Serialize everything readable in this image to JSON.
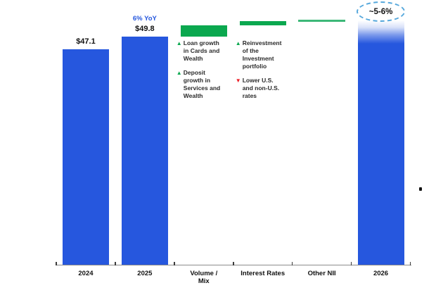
{
  "page": {
    "background_color": "#ffffff",
    "accent_blue": "#2657DE",
    "accent_green": "#0BA84F",
    "accent_red": "#EC1C24",
    "callout_border_color": "#56A8DC"
  },
  "chart_data": {
    "type": "waterfall",
    "title": "",
    "xlabel": "",
    "ylabel": "",
    "ylim": [
      0,
      57.8
    ],
    "grid": false,
    "legend": "none",
    "categories": [
      "2024",
      "2025",
      "Volume / Mix",
      "Interest Rates",
      "Other NII",
      "2026"
    ],
    "columns": [
      {
        "category": "2024",
        "tick_lines": [
          "2024"
        ],
        "role": "total",
        "value": 47.1,
        "value_label": "$47.1",
        "color": "#2657DE"
      },
      {
        "category": "2025",
        "tick_lines": [
          "2025"
        ],
        "role": "total",
        "value": 49.8,
        "value_label": "$49.8",
        "growth_label": "6% YoY",
        "growth_label_color": "#2456DD",
        "color": "#2657DE"
      },
      {
        "category": "Volume / Mix",
        "tick_lines": [
          "Volume /",
          "Mix"
        ],
        "role": "increase",
        "start": 49.8,
        "end": 52.2,
        "approx_change": 2.4,
        "color": "#0BA84F",
        "annotations": [
          {
            "icon": "up-triangle-icon",
            "glyph": "▲",
            "icon_color": "#0BA84F",
            "lines": [
              "Loan growth",
              "in Cards and",
              "Wealth"
            ]
          },
          {
            "icon": "up-triangle-icon",
            "glyph": "▲",
            "icon_color": "#0BA84F",
            "lines": [
              "Deposit",
              "growth in",
              "Services and",
              "Wealth"
            ]
          }
        ]
      },
      {
        "category": "Interest Rates",
        "tick_lines": [
          "Interest Rates"
        ],
        "role": "increase",
        "start": 52.2,
        "end": 53.2,
        "approx_change": 1.0,
        "color": "#0BA84F",
        "annotations": [
          {
            "icon": "up-triangle-icon",
            "glyph": "▲",
            "icon_color": "#0BA84F",
            "lines": [
              "Reinvestment",
              "of the",
              "Investment",
              "portfolio"
            ]
          },
          {
            "icon": "down-triangle-icon",
            "glyph": "▼",
            "icon_color": "#EC1C24",
            "lines": [
              "Lower U.S.",
              "and non-U.S.",
              "rates"
            ]
          }
        ]
      },
      {
        "category": "Other NII",
        "tick_lines": [
          "Other NII"
        ],
        "role": "flat",
        "start": 53.2,
        "end": 53.3,
        "approx_change": 0,
        "color": "#3CB878"
      },
      {
        "category": "2026",
        "tick_lines": [
          "2026"
        ],
        "role": "estimated-total",
        "value": 53.3,
        "value_label": "~5-6%",
        "callout_style": "dashed-ellipse",
        "color": "#2657DE",
        "top_fade": true
      }
    ]
  }
}
